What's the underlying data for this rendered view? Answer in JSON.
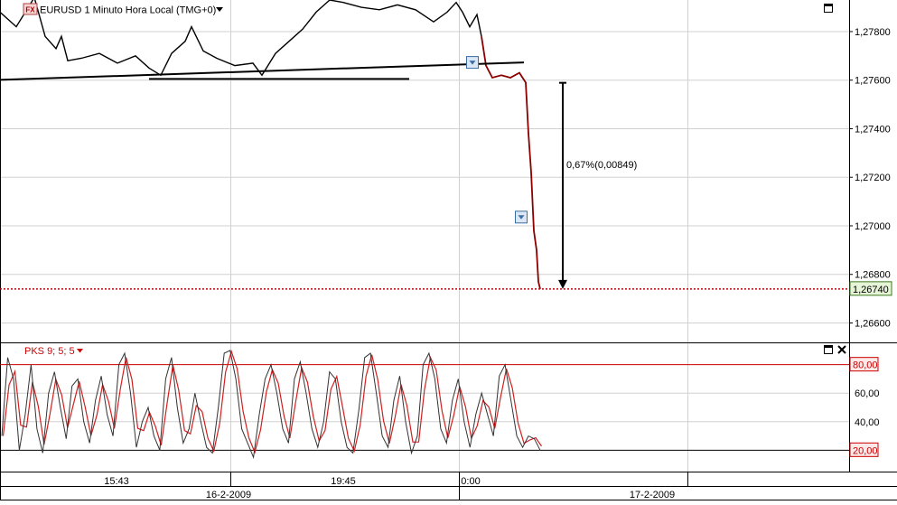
{
  "header": {
    "instrument_badge": "FX",
    "title": "EURUSD 1 Minuto Hora Local (TMG+0)",
    "dropdown_icon": "triangle-down-icon"
  },
  "colors": {
    "grid": "#d0d0d0",
    "price_line": "#000000",
    "drop_line": "#8b0000",
    "last_price": "#cc0000",
    "last_price_label_bg": "#e6f5d8",
    "last_price_label_border": "#3a7a1a",
    "osc_black": "#333333",
    "osc_red": "#d02020",
    "level_line": "#cc0000",
    "marker": "#3a6ea5"
  },
  "chart_data": [
    {
      "type": "line",
      "title": "EURUSD 1 Minuto Hora Local (TMG+0)",
      "y_ticks": [
        "1,27800",
        "1,27600",
        "1,27400",
        "1,27200",
        "1,27000",
        "1,26800",
        "1,26600"
      ],
      "y_tick_values": [
        1.278,
        1.276,
        1.274,
        1.272,
        1.27,
        1.268,
        1.266
      ],
      "ylim": [
        1.2652,
        1.2793
      ],
      "last_price_label": "1,26740",
      "last_price_value": 1.2674,
      "annotation": "0,67%(0,00849)",
      "annotation_range": [
        1.27589,
        1.2674
      ],
      "price_path": [
        [
          0,
          1.2788
        ],
        [
          18,
          1.2782
        ],
        [
          38,
          1.2794
        ],
        [
          50,
          1.2778
        ],
        [
          62,
          1.2773
        ],
        [
          68,
          1.2778
        ],
        [
          75,
          1.2768
        ],
        [
          90,
          1.2769
        ],
        [
          110,
          1.2771
        ],
        [
          130,
          1.2767
        ],
        [
          150,
          1.277
        ],
        [
          165,
          1.2765
        ],
        [
          178,
          1.2762
        ],
        [
          190,
          1.2771
        ],
        [
          205,
          1.2776
        ],
        [
          212,
          1.2782
        ],
        [
          225,
          1.2772
        ],
        [
          240,
          1.2769
        ],
        [
          260,
          1.2766
        ],
        [
          280,
          1.2767
        ],
        [
          290,
          1.2762
        ],
        [
          305,
          1.2771
        ],
        [
          320,
          1.2776
        ],
        [
          335,
          1.2781
        ],
        [
          350,
          1.2788
        ],
        [
          365,
          1.2793
        ],
        [
          380,
          1.2792
        ],
        [
          400,
          1.279
        ],
        [
          420,
          1.2789
        ],
        [
          440,
          1.2791
        ],
        [
          460,
          1.2789
        ],
        [
          480,
          1.2784
        ],
        [
          495,
          1.2788
        ],
        [
          505,
          1.2792
        ],
        [
          512,
          1.2788
        ],
        [
          520,
          1.2782
        ],
        [
          528,
          1.2787
        ],
        [
          533,
          1.2778
        ],
        [
          538,
          1.2766
        ],
        [
          545,
          1.2761
        ],
        [
          555,
          1.2762
        ],
        [
          565,
          1.2761
        ],
        [
          575,
          1.2763
        ],
        [
          582,
          1.2759
        ],
        [
          585,
          1.2738
        ],
        [
          588,
          1.2722
        ],
        [
          591,
          1.2698
        ],
        [
          594,
          1.269
        ],
        [
          596,
          1.2677
        ],
        [
          598,
          1.2674
        ]
      ],
      "trendlines": [
        {
          "from": [
            0,
            1.27601
          ],
          "to": [
            580,
            1.27673
          ]
        },
        {
          "from": [
            165,
            1.27605
          ],
          "to": [
            453,
            1.27605
          ]
        }
      ]
    },
    {
      "type": "line",
      "title": "PKS 9; 5; 5",
      "y_ticks": [
        "80,00",
        "60,00",
        "40,00",
        "20,00"
      ],
      "y_tick_values": [
        80,
        60,
        40,
        20
      ],
      "ylim": [
        5,
        95
      ],
      "levels": [
        80,
        20
      ],
      "level_labels": [
        "80,00",
        "20,00"
      ],
      "series": [
        {
          "values": [
            30,
            85,
            70,
            20,
            45,
            80,
            35,
            18,
            60,
            75,
            50,
            28,
            65,
            70,
            40,
            25,
            55,
            72,
            45,
            30,
            80,
            88,
            60,
            22,
            40,
            50,
            30,
            20,
            70,
            85,
            50,
            25,
            35,
            60,
            40,
            22,
            18,
            50,
            88,
            90,
            70,
            35,
            25,
            15,
            45,
            70,
            80,
            60,
            35,
            25,
            70,
            82,
            60,
            35,
            22,
            40,
            75,
            70,
            40,
            22,
            18,
            48,
            85,
            88,
            60,
            30,
            22,
            55,
            72,
            40,
            18,
            30,
            80,
            88,
            70,
            35,
            25,
            55,
            70,
            40,
            22,
            45,
            60,
            45,
            30,
            72,
            80,
            55,
            30,
            22,
            30,
            28,
            20
          ]
        }
      ]
    }
  ],
  "x_axis": {
    "time_ticks": [
      "15:43",
      "19:45",
      "0:00"
    ],
    "date_labels": [
      "16-2-2009",
      "17-2-2009"
    ]
  },
  "window_controls": {
    "maximize_icon": "maximize-icon",
    "close_icon": "close-icon"
  }
}
